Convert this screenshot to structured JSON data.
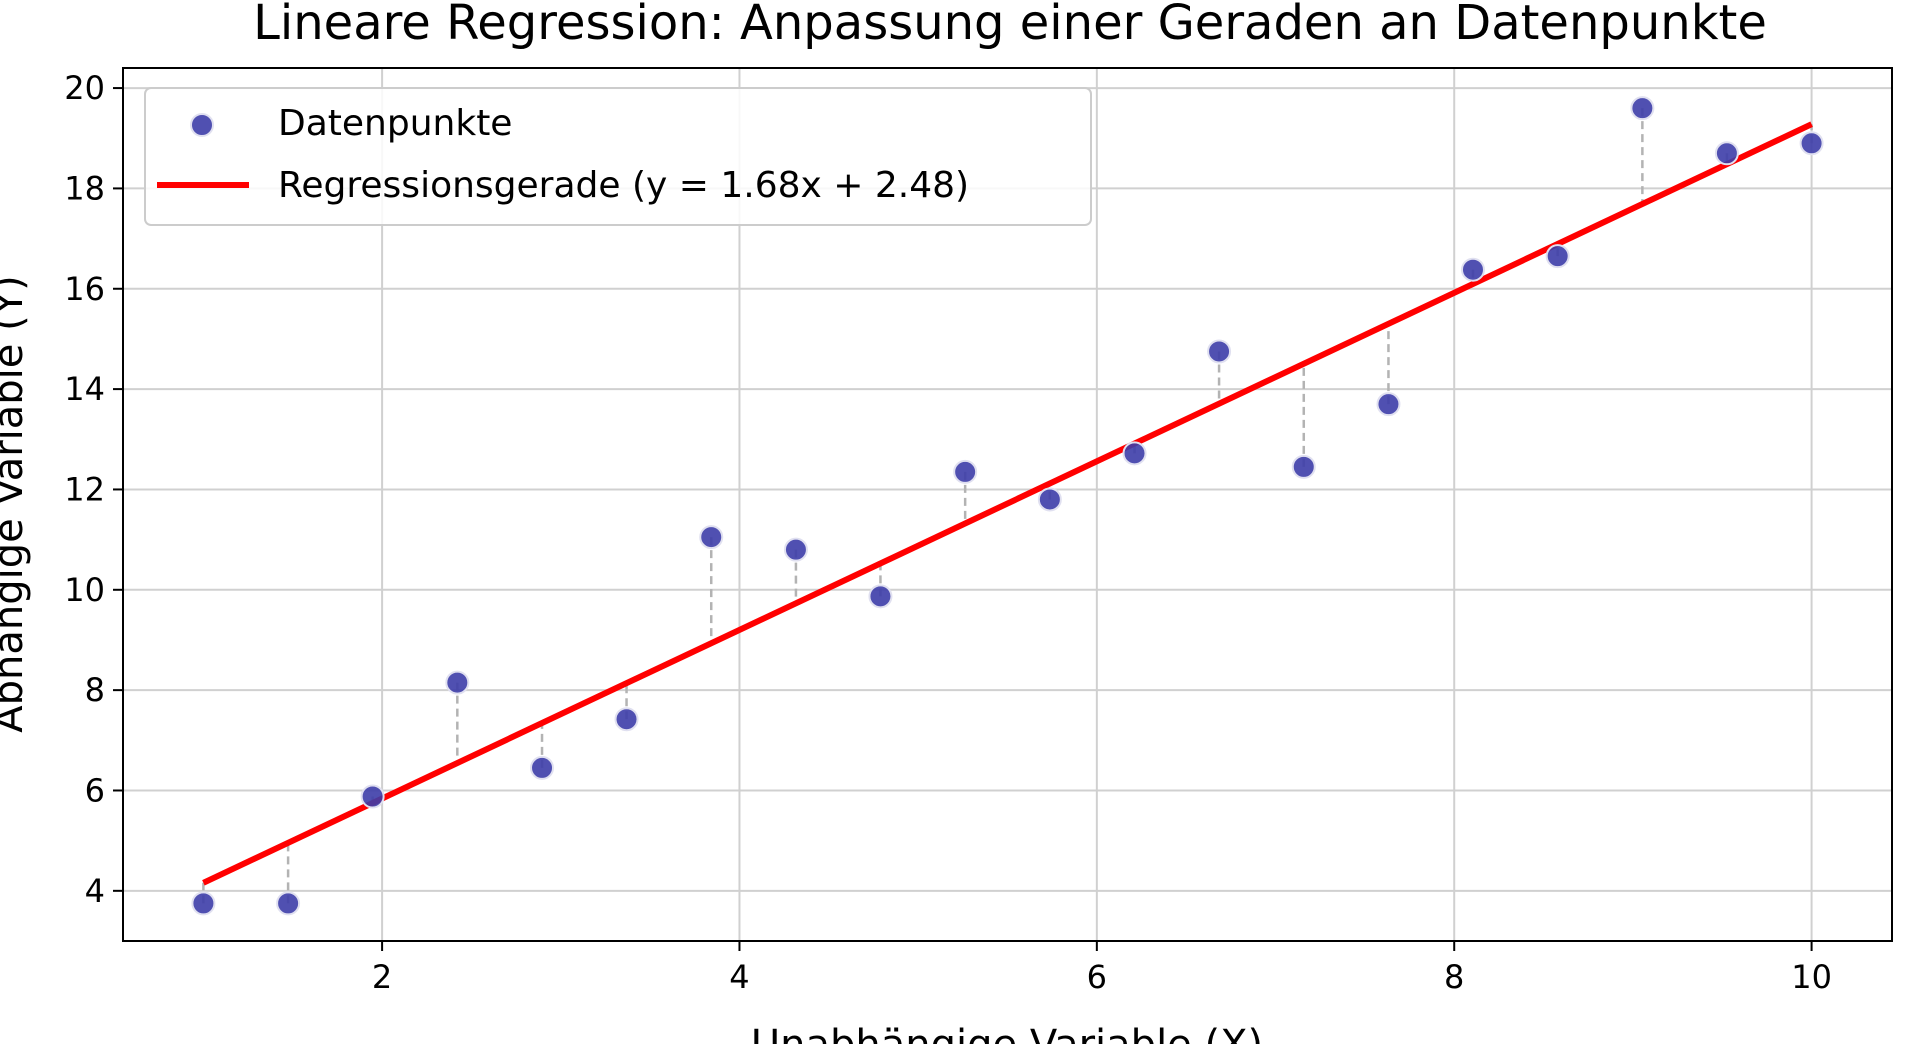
{
  "chart_data": {
    "type": "scatter",
    "title": "Lineare Regression: Anpassung einer Geraden an Datenpunkte",
    "xlabel": "Unabhängige Variable (X)",
    "ylabel": "Abhängige Variable (Y)",
    "xlim": [
      0.55,
      10.45
    ],
    "ylim": [
      3.0,
      20.4
    ],
    "x_ticks": [
      2,
      4,
      6,
      8,
      10
    ],
    "y_ticks": [
      4,
      6,
      8,
      10,
      12,
      14,
      16,
      18,
      20
    ],
    "grid": true,
    "legend_position": "top-left",
    "series": [
      {
        "name": "Datenpunkte",
        "kind": "scatter",
        "color": "#3d3da8",
        "x": [
          1.0,
          1.474,
          1.947,
          2.421,
          2.895,
          3.368,
          3.842,
          4.316,
          4.789,
          5.263,
          5.737,
          6.211,
          6.684,
          7.158,
          7.632,
          8.105,
          8.579,
          9.053,
          9.526,
          10.0
        ],
        "y": [
          3.75,
          3.75,
          5.88,
          8.15,
          6.45,
          7.42,
          11.05,
          10.8,
          9.87,
          12.35,
          11.8,
          12.72,
          14.75,
          12.45,
          13.7,
          16.38,
          16.65,
          19.6,
          18.7,
          18.9
        ]
      },
      {
        "name": "Regressionsgerade (y = 1.68x + 2.48)",
        "kind": "line",
        "color": "#ff0000",
        "slope": 1.68,
        "intercept": 2.48,
        "x_range": [
          1.0,
          10.0
        ]
      }
    ],
    "residual_lines": true,
    "residual_color": "#b3b3b3"
  }
}
